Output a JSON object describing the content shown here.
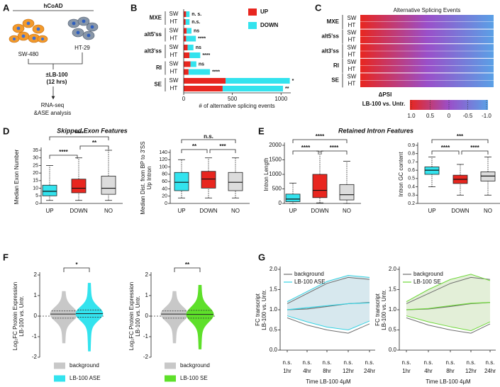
{
  "panel_labels": [
    "A",
    "B",
    "C",
    "D",
    "E",
    "F",
    "G"
  ],
  "section_titles": [
    "Skipped Exon Features",
    "Retained Intron Features"
  ],
  "diagram": {
    "title": "hCoAD",
    "cell_lines": [
      "SW-480",
      "HT-29"
    ],
    "treatment": [
      "±LB-100",
      "(12 hrs)"
    ],
    "analysis": [
      "RNA-seq",
      "&ASE analysis"
    ]
  },
  "chart_data": [
    {
      "type": "stacked-hbar",
      "groups": [
        "MXE",
        "alt5'ss",
        "alt3'ss",
        "RI",
        "SE"
      ],
      "categories": [
        "SW",
        "HT",
        "SW",
        "HT",
        "SW",
        "HT",
        "SW",
        "HT",
        "SW",
        "HT"
      ],
      "series": [
        {
          "name": "UP",
          "color": "#e8261f",
          "values": [
            25,
            20,
            30,
            25,
            40,
            60,
            70,
            50,
            430,
            400
          ]
        },
        {
          "name": "DOWN",
          "color": "#33e3ee",
          "values": [
            35,
            40,
            50,
            100,
            60,
            110,
            60,
            220,
            660,
            620
          ]
        }
      ],
      "annotations": [
        "n. s.",
        "n.s.",
        "ns",
        "****",
        "ns",
        "****",
        "ns",
        "****",
        "*",
        "**"
      ],
      "xlabel": "# of alternative splicing events",
      "xlim": [
        0,
        1100
      ],
      "xticks": [
        0,
        500,
        1000
      ]
    },
    {
      "type": "heatmap",
      "title": "Alternative Splicing Events",
      "groups": [
        "MXE",
        "alt5'ss",
        "alt3'ss",
        "RI",
        "SE"
      ],
      "categories": [
        "SW",
        "HT",
        "SW",
        "HT",
        "SW",
        "HT",
        "SW",
        "HT",
        "SW",
        "HT"
      ],
      "colorbar_label": "ΔPSI",
      "colorbar_sublabel": "LB-100 vs. Untr.",
      "clim": [
        1,
        -1
      ],
      "cticks": [
        {
          "value": 1,
          "label": "1.0"
        },
        0.5,
        0,
        -0.5,
        {
          "value": -1,
          "label": "-1.0"
        }
      ],
      "colors": [
        "#e8261f",
        "#9a4fc9",
        "#5aa0e6"
      ]
    },
    {
      "type": "box",
      "ylabel": [
        "Median Exon Number"
      ],
      "categories": [
        "UP",
        "DOWN",
        "NO"
      ],
      "colors": [
        "#33e3ee",
        "#e8261f",
        "#dcdcdc"
      ],
      "stats": [
        [
          2,
          5,
          8,
          12,
          25
        ],
        [
          2,
          7,
          10,
          16,
          30
        ],
        [
          2,
          6,
          10,
          18,
          35
        ]
      ],
      "ylim": [
        0,
        35
      ],
      "yticks": [
        0,
        5,
        10,
        15,
        20,
        25,
        30,
        35
      ],
      "significance": [
        "****",
        "**",
        "****"
      ]
    },
    {
      "type": "box",
      "ylabel": [
        "Median Dist. from BP to 3'SS",
        "Up Intron"
      ],
      "categories": [
        "UP",
        "DOWN",
        "NO"
      ],
      "colors": [
        "#33e3ee",
        "#e8261f",
        "#dcdcdc"
      ],
      "stats": [
        [
          15,
          35,
          58,
          85,
          120
        ],
        [
          15,
          42,
          67,
          88,
          125
        ],
        [
          15,
          35,
          58,
          85,
          125
        ]
      ],
      "ylim": [
        0,
        140
      ],
      "yticks": [
        0,
        20,
        40,
        60,
        80,
        100,
        120,
        140
      ],
      "significance": [
        "**",
        "***",
        "n.s."
      ]
    },
    {
      "type": "box",
      "ylabel": [
        "Intron Length"
      ],
      "categories": [
        "UP",
        "DOWN",
        "NO"
      ],
      "colors": [
        "#33e3ee",
        "#e8261f",
        "#dcdcdc"
      ],
      "stats": [
        [
          0,
          60,
          150,
          320,
          700
        ],
        [
          20,
          200,
          450,
          1000,
          1800
        ],
        [
          0,
          120,
          300,
          650,
          1450
        ]
      ],
      "ylim": [
        0,
        2000
      ],
      "yticks": [
        0,
        500,
        1000,
        1500,
        2000
      ],
      "significance": [
        "****",
        "****",
        "****"
      ]
    },
    {
      "type": "box",
      "ylabel": [
        "Intron GC content"
      ],
      "categories": [
        "UP",
        "DOWN",
        "NO"
      ],
      "colors": [
        "#33e3ee",
        "#e8261f",
        "#dcdcdc"
      ],
      "stats": [
        [
          0.4,
          0.55,
          0.6,
          0.64,
          0.76
        ],
        [
          0.3,
          0.44,
          0.49,
          0.54,
          0.67
        ],
        [
          0.3,
          0.47,
          0.53,
          0.58,
          0.76
        ]
      ],
      "ylim": [
        0.2,
        0.9
      ],
      "yticks": [
        0.2,
        0.3,
        0.4,
        0.5,
        0.6,
        0.7,
        0.8,
        0.9
      ],
      "significance": [
        "****",
        "****",
        "***"
      ]
    },
    {
      "type": "violin",
      "ylabel": [
        "Log₂FC Protein Expression",
        "LB-100 vs. Untr."
      ],
      "ylim": [
        -2,
        2
      ],
      "yticks": [
        -2,
        -1,
        0,
        1,
        2
      ],
      "series": [
        {
          "name": "background",
          "color": "#c8c8c8",
          "stats": [
            -1.3,
            -0.1,
            0.1,
            0.25,
            1.2
          ]
        },
        {
          "name": "LB-100 ASE",
          "color": "#33e3ee",
          "stats": [
            -1.7,
            -0.05,
            0.12,
            0.3,
            1.6
          ]
        }
      ],
      "significance": "*"
    },
    {
      "type": "violin",
      "ylabel": [
        "Log₂FC Protein Expression",
        "LB-100 vs. Untr."
      ],
      "ylim": [
        -2,
        2
      ],
      "yticks": [
        -2,
        -1,
        0,
        1,
        2
      ],
      "series": [
        {
          "name": "background",
          "color": "#c8c8c8",
          "stats": [
            -1.3,
            -0.1,
            0.1,
            0.25,
            1.2
          ]
        },
        {
          "name": "LB-100 SE",
          "color": "#5ee02a",
          "stats": [
            -1.6,
            -0.1,
            0.08,
            0.28,
            1.5
          ]
        }
      ],
      "significance": "**"
    },
    {
      "type": "band-line",
      "ylabel": [
        "FC transcript",
        "LB-100 vs. Untr."
      ],
      "xlabel": "Time LB-100 4μM",
      "categories": [
        "1hr",
        "4hr",
        "8hr",
        "12hr",
        "24hr"
      ],
      "ylim": [
        0,
        2
      ],
      "yticks": [
        {
          "value": 0,
          "label": "0.0"
        },
        0.5,
        {
          "value": 1,
          "label": "1.0"
        },
        1.5,
        {
          "value": 2,
          "label": "2.0"
        }
      ],
      "series": [
        {
          "name": "background",
          "color": "#6e6e6e",
          "mean": [
            1.0,
            1.02,
            1.08,
            1.15,
            1.18
          ],
          "upper": [
            1.15,
            1.4,
            1.65,
            1.8,
            1.75
          ],
          "lower": [
            0.8,
            0.62,
            0.5,
            0.42,
            0.65
          ]
        },
        {
          "name": "LB-100 ASE",
          "color": "#36d3e3",
          "band": "#d7e8ee",
          "mean": [
            1.0,
            1.05,
            1.1,
            1.15,
            1.17
          ],
          "upper": [
            1.2,
            1.45,
            1.7,
            1.85,
            1.8
          ],
          "lower": [
            0.85,
            0.7,
            0.57,
            0.5,
            0.72
          ]
        }
      ],
      "annotations": [
        "n.s.",
        "n.s.",
        "n.s.",
        "n.s.",
        "n.s."
      ]
    },
    {
      "type": "band-line",
      "ylabel": [
        "FC transcript",
        "LB-100 vs. Untr."
      ],
      "xlabel": "Time LB-100 4μM",
      "categories": [
        "1hr",
        "4hr",
        "8hr",
        "12hr",
        "24hr"
      ],
      "ylim": [
        0,
        2
      ],
      "yticks": [
        {
          "value": 0,
          "label": "0.0"
        },
        0.5,
        {
          "value": 1,
          "label": "1.0"
        },
        1.5,
        {
          "value": 2,
          "label": "2.0"
        }
      ],
      "series": [
        {
          "name": "background",
          "color": "#6e6e6e",
          "mean": [
            1.0,
            1.02,
            1.08,
            1.15,
            1.18
          ],
          "upper": [
            1.15,
            1.4,
            1.65,
            1.8,
            1.75
          ],
          "lower": [
            0.8,
            0.62,
            0.5,
            0.42,
            0.65
          ]
        },
        {
          "name": "LB-100 SE",
          "color": "#6fd83a",
          "band": "#e3efd8",
          "mean": [
            1.0,
            1.03,
            1.1,
            1.16,
            1.18
          ],
          "upper": [
            1.2,
            1.5,
            1.75,
            1.88,
            1.72
          ],
          "lower": [
            0.85,
            0.7,
            0.58,
            0.48,
            0.7
          ]
        }
      ],
      "annotations": [
        "n.s.",
        "n.s.",
        "n.s.",
        "n.s.",
        "n.s."
      ]
    }
  ]
}
